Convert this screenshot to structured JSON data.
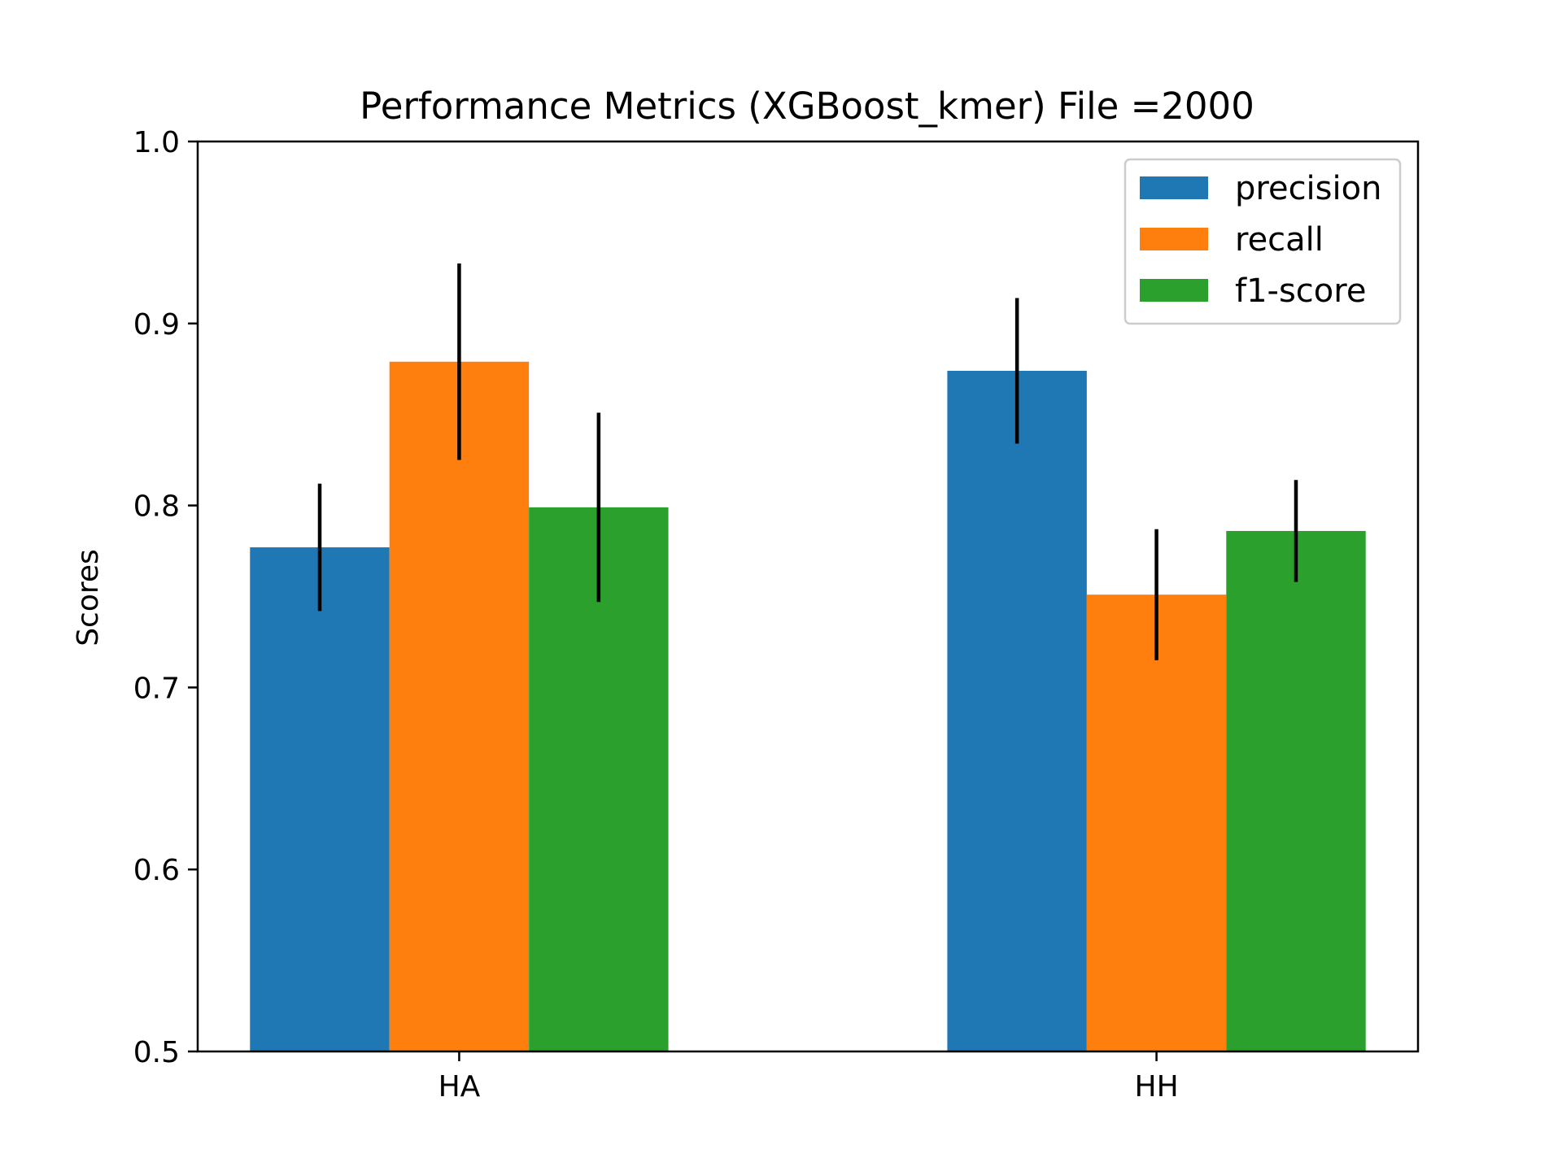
{
  "chart_data": {
    "type": "bar",
    "title": "Performance Metrics (XGBoost_kmer) File =2000",
    "xlabel": "",
    "ylabel": "Scores",
    "ylim": [
      0.5,
      1.0
    ],
    "yticks": [
      "0.5",
      "0.6",
      "0.7",
      "0.8",
      "0.9",
      "1.0"
    ],
    "categories": [
      "HA",
      "HH"
    ],
    "grid": false,
    "legend_position": "top-right",
    "series": [
      {
        "name": "precision",
        "color": "#1f77b4",
        "values": [
          0.777,
          0.874
        ],
        "errors": [
          0.035,
          0.04
        ]
      },
      {
        "name": "recall",
        "color": "#ff7f0e",
        "values": [
          0.879,
          0.751
        ],
        "errors": [
          0.054,
          0.036
        ]
      },
      {
        "name": "f1-score",
        "color": "#2ca02c",
        "values": [
          0.799,
          0.786
        ],
        "errors": [
          0.052,
          0.028
        ]
      }
    ]
  }
}
